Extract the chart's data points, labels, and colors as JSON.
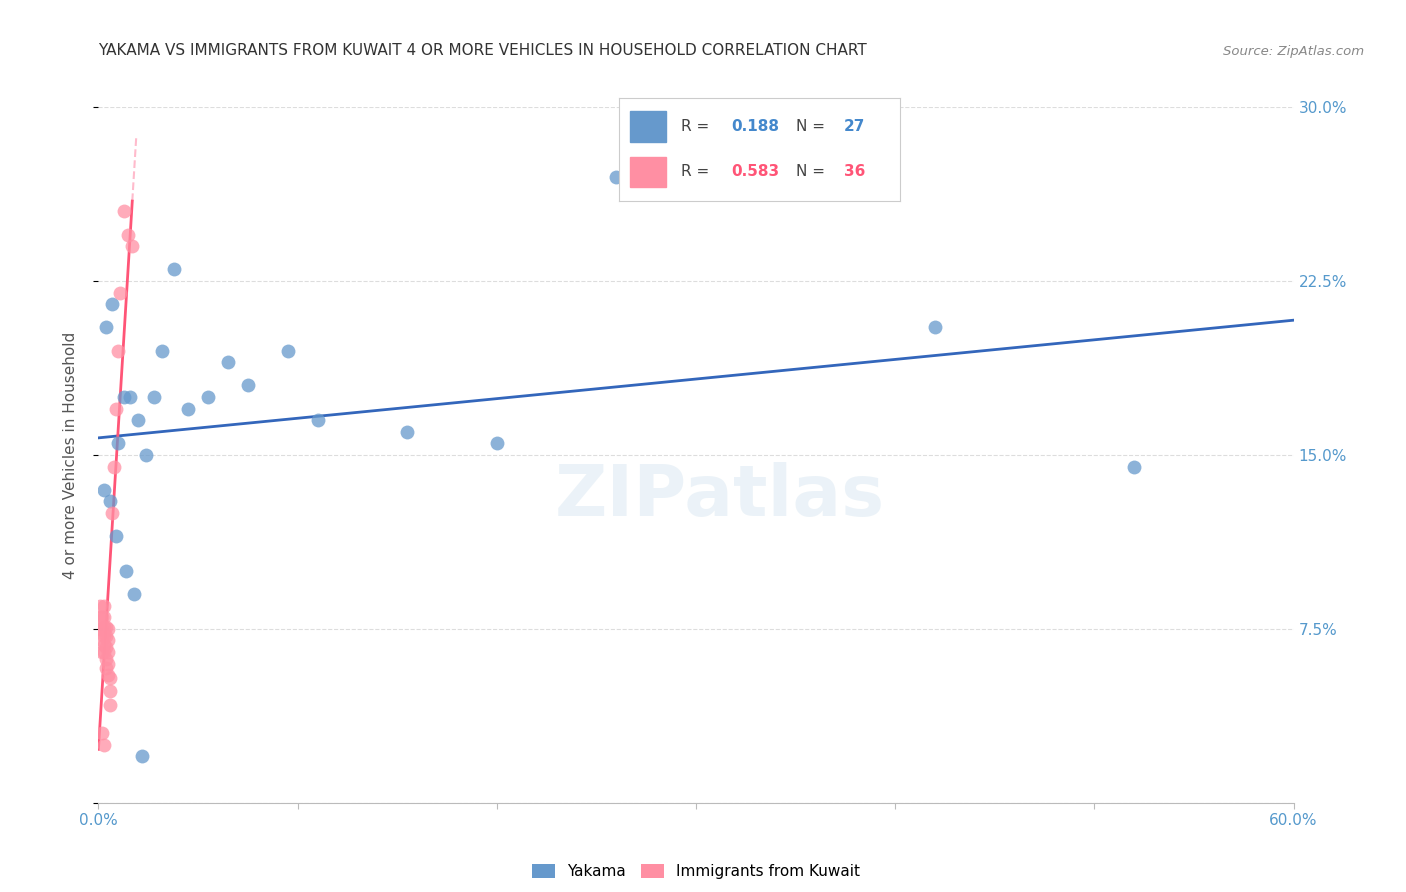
{
  "title": "YAKAMA VS IMMIGRANTS FROM KUWAIT 4 OR MORE VEHICLES IN HOUSEHOLD CORRELATION CHART",
  "source": "Source: ZipAtlas.com",
  "ylabel": "4 or more Vehicles in Household",
  "xmin": 0.0,
  "xmax": 0.6,
  "ymin": 0.0,
  "ymax": 0.3,
  "xticks": [
    0.0,
    0.1,
    0.2,
    0.3,
    0.4,
    0.5,
    0.6
  ],
  "xtick_labels": [
    "0.0%",
    "",
    "",
    "",
    "",
    "",
    "60.0%"
  ],
  "yticks": [
    0.0,
    0.075,
    0.15,
    0.225,
    0.3
  ],
  "ytick_labels_right": [
    "",
    "7.5%",
    "15.0%",
    "22.5%",
    "30.0%"
  ],
  "r_yakama": 0.188,
  "n_yakama": 27,
  "r_kuwait": 0.583,
  "n_kuwait": 36,
  "color_yakama": "#6699CC",
  "color_kuwait": "#FF8FA3",
  "trendline_color_yakama": "#3366BB",
  "trendline_color_kuwait": "#FF5577",
  "dashed_line_color": "#FFBBCC",
  "background_color": "#FFFFFF",
  "grid_color": "#DDDDDD",
  "yakama_x": [
    0.004,
    0.007,
    0.01,
    0.013,
    0.016,
    0.02,
    0.024,
    0.028,
    0.032,
    0.038,
    0.045,
    0.055,
    0.065,
    0.075,
    0.095,
    0.11,
    0.155,
    0.2,
    0.26,
    0.42,
    0.52,
    0.003,
    0.006,
    0.009,
    0.014,
    0.018,
    0.022
  ],
  "yakama_y": [
    0.205,
    0.215,
    0.155,
    0.175,
    0.175,
    0.165,
    0.15,
    0.175,
    0.195,
    0.23,
    0.17,
    0.175,
    0.19,
    0.18,
    0.195,
    0.165,
    0.16,
    0.155,
    0.27,
    0.205,
    0.145,
    0.135,
    0.13,
    0.115,
    0.1,
    0.09,
    0.02
  ],
  "kuwait_x": [
    0.001,
    0.001,
    0.001,
    0.002,
    0.002,
    0.002,
    0.002,
    0.003,
    0.003,
    0.003,
    0.003,
    0.003,
    0.003,
    0.004,
    0.004,
    0.004,
    0.004,
    0.004,
    0.005,
    0.005,
    0.005,
    0.005,
    0.005,
    0.006,
    0.006,
    0.006,
    0.007,
    0.008,
    0.009,
    0.01,
    0.011,
    0.013,
    0.015,
    0.017,
    0.002,
    0.003
  ],
  "kuwait_y": [
    0.075,
    0.08,
    0.085,
    0.065,
    0.07,
    0.075,
    0.08,
    0.065,
    0.068,
    0.072,
    0.076,
    0.08,
    0.085,
    0.058,
    0.062,
    0.067,
    0.072,
    0.076,
    0.055,
    0.06,
    0.065,
    0.07,
    0.075,
    0.042,
    0.048,
    0.054,
    0.125,
    0.145,
    0.17,
    0.195,
    0.22,
    0.255,
    0.245,
    0.24,
    0.03,
    0.025
  ]
}
